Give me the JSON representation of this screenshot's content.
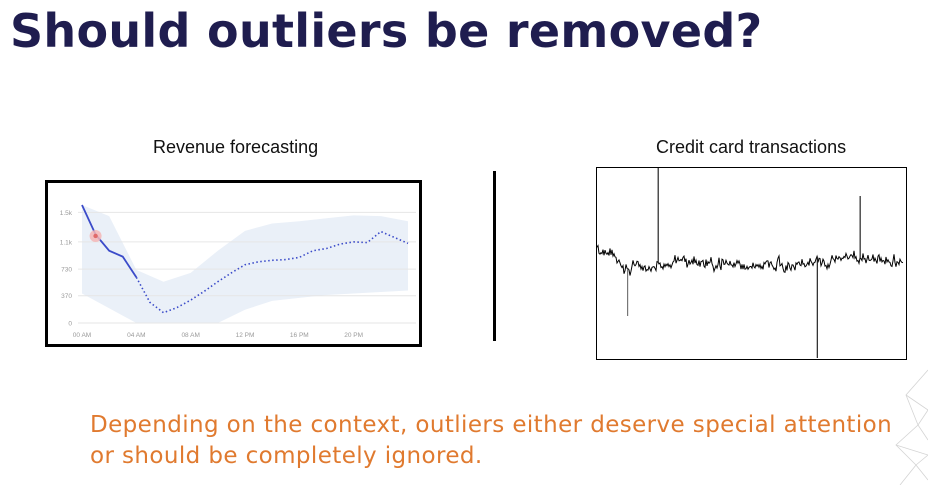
{
  "slide": {
    "title": "Should outliers be removed?",
    "caption_line1": "Depending on the context, outliers either deserve special attention",
    "caption_line2": "or should be completely ignored.",
    "colors": {
      "title": "#1f1d4f",
      "caption": "#e07a2f",
      "forecast_line": "#3b4bc9",
      "band": "#eaf0f8"
    }
  },
  "chart_data": [
    {
      "type": "line",
      "title": "Revenue forecasting",
      "x_ticks": [
        "00 AM",
        "04 AM",
        "08 AM",
        "12 PM",
        "16 PM",
        "20 PM"
      ],
      "y_ticks": [
        "0",
        "370",
        "730",
        "1.1k",
        "1.5k"
      ],
      "ylim": [
        0,
        1600
      ],
      "xlim": [
        0,
        24
      ],
      "series": [
        {
          "style": "solid",
          "x": [
            0,
            1,
            2,
            3,
            4
          ],
          "y": [
            1600,
            1200,
            980,
            900,
            620
          ]
        },
        {
          "style": "dotted",
          "x": [
            4,
            5,
            6,
            7,
            8,
            9,
            10,
            11,
            12,
            13,
            14,
            15,
            16,
            17,
            18,
            19,
            20,
            21,
            22,
            23,
            24
          ],
          "y": [
            620,
            280,
            140,
            210,
            310,
            430,
            560,
            680,
            790,
            830,
            850,
            860,
            890,
            980,
            1010,
            1070,
            1100,
            1090,
            1240,
            1160,
            1080
          ]
        }
      ],
      "band": {
        "x": [
          0,
          2,
          4,
          6,
          8,
          10,
          12,
          14,
          16,
          18,
          20,
          22,
          24
        ],
        "upper": [
          1600,
          1450,
          720,
          560,
          680,
          980,
          1250,
          1350,
          1380,
          1420,
          1460,
          1450,
          1380
        ],
        "lower": [
          400,
          200,
          0,
          0,
          0,
          0,
          180,
          300,
          340,
          380,
          400,
          420,
          440
        ]
      },
      "outlier": {
        "x": 1,
        "y": 1180
      },
      "grid": true
    },
    {
      "type": "line",
      "title": "Credit card transactions",
      "grid": false,
      "spikes": [
        {
          "position": 0.1,
          "direction": "down"
        },
        {
          "position": 0.2,
          "direction": "up"
        },
        {
          "position": 0.72,
          "direction": "down"
        },
        {
          "position": 0.86,
          "direction": "up"
        }
      ]
    }
  ]
}
